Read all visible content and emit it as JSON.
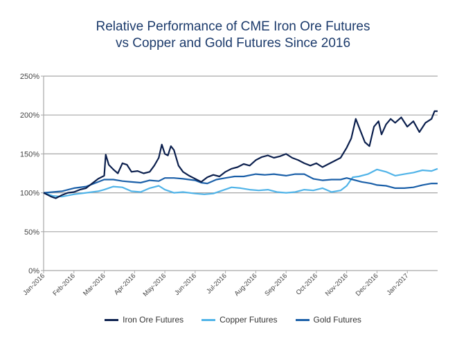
{
  "chart_data": {
    "type": "line",
    "title": "Relative Performance of CME Iron Ore Futures vs Copper and Gold Futures Since 2016",
    "title_lines": [
      "Relative Performance of CME Iron Ore Futures",
      "vs Copper and Gold Futures Since 2016"
    ],
    "xlabel": "",
    "ylabel": "",
    "x_unit": "months since Jan-2016",
    "xlim": [
      0,
      13
    ],
    "ylim": [
      0,
      250
    ],
    "grid": "horizontal",
    "legend_position": "bottom",
    "y_ticks": [
      {
        "value": 0,
        "label": "0%"
      },
      {
        "value": 50,
        "label": "50%"
      },
      {
        "value": 100,
        "label": "100%"
      },
      {
        "value": 150,
        "label": "150%"
      },
      {
        "value": 200,
        "label": "200%"
      },
      {
        "value": 250,
        "label": "250%"
      }
    ],
    "x_ticks": [
      {
        "value": 0,
        "label": "Jan-2016"
      },
      {
        "value": 1,
        "label": "Feb-2016"
      },
      {
        "value": 2,
        "label": "Mar-2016"
      },
      {
        "value": 3,
        "label": "Apr-2016"
      },
      {
        "value": 4,
        "label": "May-2016"
      },
      {
        "value": 5,
        "label": "Jun-2016"
      },
      {
        "value": 6,
        "label": "Jul-2016"
      },
      {
        "value": 7,
        "label": "Aug-2016"
      },
      {
        "value": 8,
        "label": "Sep-2016"
      },
      {
        "value": 9,
        "label": "Oct-2016"
      },
      {
        "value": 10,
        "label": "Nov-2016"
      },
      {
        "value": 11,
        "label": "Dec-2016"
      },
      {
        "value": 12,
        "label": "Jan-2017"
      }
    ],
    "series": [
      {
        "name": "Iron Ore Futures",
        "color": "#0b1f4d",
        "x": [
          0,
          0.25,
          0.4,
          0.6,
          0.8,
          1.0,
          1.2,
          1.4,
          1.6,
          1.8,
          2.0,
          2.05,
          2.15,
          2.3,
          2.45,
          2.6,
          2.75,
          2.9,
          3.1,
          3.3,
          3.5,
          3.65,
          3.8,
          3.9,
          4.0,
          4.1,
          4.2,
          4.3,
          4.45,
          4.6,
          4.8,
          5.0,
          5.2,
          5.4,
          5.6,
          5.8,
          6.0,
          6.2,
          6.4,
          6.6,
          6.8,
          7.0,
          7.2,
          7.4,
          7.6,
          7.8,
          8.0,
          8.2,
          8.4,
          8.6,
          8.8,
          9.0,
          9.2,
          9.4,
          9.6,
          9.8,
          10.0,
          10.15,
          10.3,
          10.45,
          10.6,
          10.75,
          10.9,
          11.05,
          11.15,
          11.3,
          11.45,
          11.6,
          11.8,
          12.0,
          12.2,
          12.4,
          12.6,
          12.8,
          12.9,
          13.0
        ],
        "values": [
          100,
          95,
          93,
          97,
          100,
          101,
          104,
          106,
          112,
          118,
          122,
          149,
          136,
          130,
          125,
          138,
          136,
          127,
          128,
          125,
          127,
          135,
          145,
          162,
          150,
          148,
          160,
          155,
          135,
          127,
          122,
          118,
          114,
          120,
          123,
          121,
          127,
          131,
          133,
          137,
          135,
          142,
          146,
          148,
          145,
          147,
          150,
          145,
          142,
          138,
          135,
          138,
          133,
          137,
          141,
          145,
          158,
          170,
          195,
          180,
          165,
          160,
          185,
          192,
          175,
          188,
          195,
          190,
          197,
          185,
          192,
          178,
          190,
          195,
          205,
          205
        ]
      },
      {
        "name": "Copper Futures",
        "color": "#4fb3e8",
        "x": [
          0,
          0.3,
          0.6,
          1.0,
          1.4,
          1.8,
          2.0,
          2.3,
          2.6,
          2.9,
          3.2,
          3.5,
          3.8,
          4.0,
          4.3,
          4.6,
          5.0,
          5.3,
          5.6,
          5.9,
          6.2,
          6.5,
          6.8,
          7.1,
          7.4,
          7.7,
          8.0,
          8.3,
          8.6,
          8.9,
          9.2,
          9.5,
          9.8,
          10.0,
          10.2,
          10.4,
          10.7,
          11.0,
          11.3,
          11.6,
          11.9,
          12.2,
          12.5,
          12.8,
          13.0
        ],
        "values": [
          100,
          96,
          95,
          98,
          100,
          102,
          104,
          108,
          107,
          102,
          101,
          106,
          109,
          104,
          100,
          101,
          99,
          98,
          99,
          103,
          107,
          106,
          104,
          103,
          104,
          101,
          100,
          101,
          104,
          103,
          106,
          101,
          103,
          109,
          120,
          121,
          124,
          130,
          127,
          122,
          124,
          126,
          129,
          128,
          131
        ]
      },
      {
        "name": "Gold Futures",
        "color": "#1a5fa8",
        "x": [
          0,
          0.3,
          0.6,
          1.0,
          1.4,
          1.8,
          2.0,
          2.3,
          2.6,
          2.9,
          3.2,
          3.5,
          3.8,
          4.0,
          4.3,
          4.6,
          5.0,
          5.2,
          5.4,
          5.7,
          6.0,
          6.3,
          6.6,
          7.0,
          7.3,
          7.6,
          8.0,
          8.3,
          8.6,
          8.9,
          9.2,
          9.5,
          9.8,
          10.0,
          10.2,
          10.5,
          10.8,
          11.0,
          11.3,
          11.6,
          11.9,
          12.2,
          12.5,
          12.8,
          13.0
        ],
        "values": [
          100,
          101,
          102,
          106,
          108,
          114,
          117,
          117,
          115,
          114,
          113,
          116,
          115,
          119,
          119,
          118,
          116,
          113,
          112,
          117,
          119,
          121,
          121,
          124,
          123,
          124,
          122,
          124,
          124,
          118,
          116,
          117,
          117,
          119,
          117,
          114,
          112,
          110,
          109,
          106,
          106,
          107,
          110,
          112,
          112
        ]
      }
    ]
  }
}
